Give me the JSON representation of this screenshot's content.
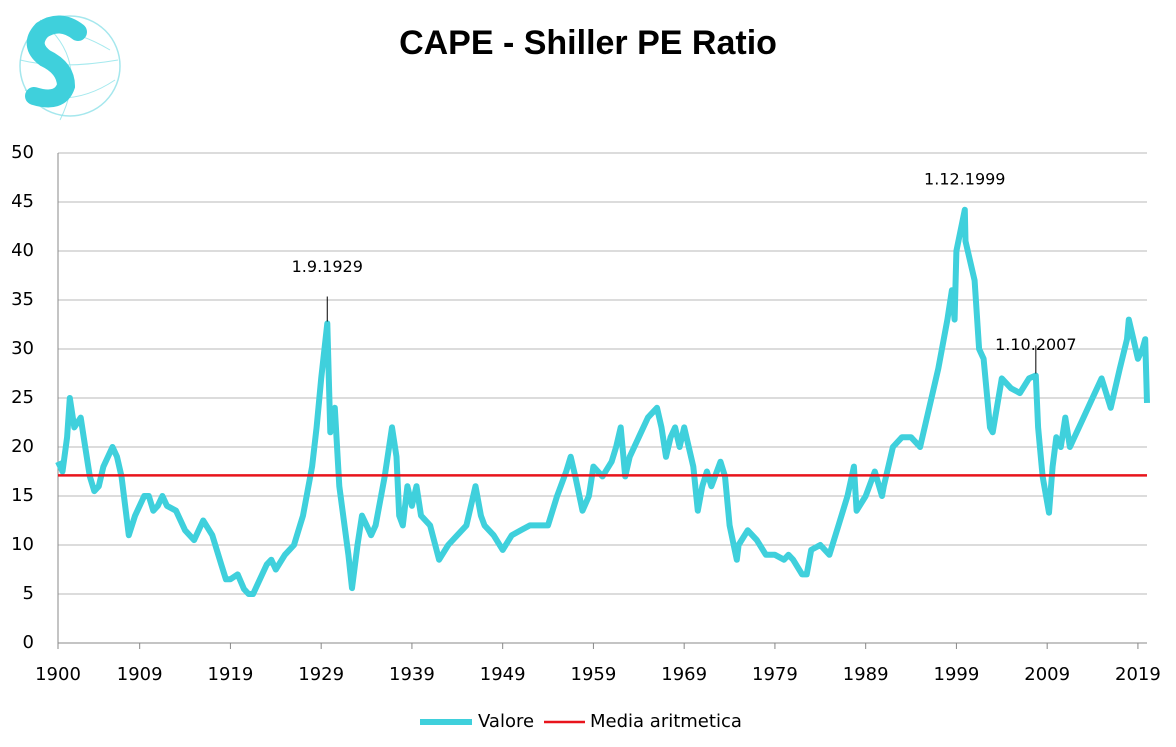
{
  "chart_data": {
    "type": "line",
    "title": "CAPE - Shiller PE Ratio",
    "x": [
      1900,
      1900.5,
      1901,
      1901.3,
      1901.8,
      1902.5,
      1903,
      1903.5,
      1904,
      1904.5,
      1905,
      1906,
      1906.5,
      1907,
      1907.8,
      1908.5,
      1909.5,
      1910,
      1910.5,
      1911,
      1911.5,
      1912,
      1913,
      1914,
      1915,
      1916,
      1917,
      1918,
      1918.5,
      1919,
      1919.8,
      1920.5,
      1921,
      1921.5,
      1922,
      1923,
      1923.5,
      1924,
      1925,
      1926,
      1926.5,
      1927,
      1928,
      1928.5,
      1929,
      1929.67,
      1930,
      1930.5,
      1931,
      1932,
      1932.4,
      1933,
      1933.5,
      1934,
      1934.5,
      1935,
      1936,
      1936.8,
      1937.3,
      1937.6,
      1938,
      1938.5,
      1939,
      1939.5,
      1940,
      1941,
      1942,
      1943,
      1944,
      1945,
      1946,
      1946.6,
      1947,
      1948,
      1949,
      1950,
      1951,
      1952,
      1953,
      1954,
      1955,
      1956,
      1956.5,
      1957,
      1957.8,
      1958.5,
      1959,
      1960,
      1961,
      1961.5,
      1962,
      1962.5,
      1963,
      1964,
      1965,
      1966,
      1966.5,
      1967,
      1967.5,
      1968,
      1968.5,
      1969,
      1970,
      1970.5,
      1971,
      1971.5,
      1972,
      1973,
      1973.5,
      1974,
      1974.8,
      1975,
      1976,
      1977,
      1978,
      1979,
      1980,
      1980.5,
      1981,
      1982,
      1982.5,
      1983,
      1984,
      1985,
      1986,
      1987,
      1987.7,
      1988,
      1989,
      1990,
      1990.8,
      1991,
      1992,
      1993,
      1994,
      1995,
      1996,
      1997,
      1998,
      1998.5,
      1998.8,
      1999,
      1999.92,
      2000,
      2001,
      2001.5,
      2002,
      2002.7,
      2003,
      2004,
      2005,
      2006,
      2007,
      2007.75,
      2008,
      2008.5,
      2009.2,
      2009.6,
      2010,
      2010.5,
      2011,
      2011.5,
      2012,
      2013,
      2014,
      2015,
      2016,
      2017,
      2017.8,
      2018,
      2018.5,
      2019,
      2019.5,
      2019.8,
      2020
    ],
    "series": [
      {
        "name": "Valore",
        "color": "#3fd0dc",
        "values": [
          18.5,
          17.5,
          21,
          25,
          22,
          23,
          20,
          17,
          15.5,
          16,
          18,
          20,
          19,
          17,
          11,
          13,
          15,
          15,
          13.5,
          14,
          15,
          14,
          13.5,
          11.5,
          10.5,
          12.5,
          11,
          8,
          6.5,
          6.5,
          7,
          5.5,
          5,
          5,
          6,
          8,
          8.5,
          7.5,
          9,
          10,
          11.5,
          13,
          18,
          22,
          27,
          32.6,
          21.5,
          24,
          16,
          9,
          5.6,
          10,
          13,
          12,
          11,
          12,
          17,
          22,
          19,
          13,
          12,
          16,
          14,
          16,
          13,
          12,
          8.5,
          10,
          11,
          12,
          16,
          13,
          12,
          11,
          9.5,
          11,
          11.5,
          12,
          12,
          12,
          15,
          17.5,
          19,
          17,
          13.5,
          15,
          18,
          17,
          18.5,
          20,
          22,
          17,
          19,
          21,
          23,
          24,
          22,
          19,
          21,
          22,
          20,
          22,
          18,
          13.5,
          16,
          17.5,
          16,
          18.5,
          17,
          12,
          8.5,
          10,
          11.5,
          10.5,
          9,
          9,
          8.5,
          9,
          8.5,
          7,
          7,
          9.5,
          10,
          9,
          12,
          15,
          18,
          13.5,
          15,
          17.5,
          15,
          16,
          20,
          21,
          21,
          20,
          24,
          28,
          33,
          36,
          33,
          40,
          44.2,
          41,
          37,
          30,
          29,
          22,
          21.5,
          27,
          26,
          25.5,
          27,
          27.3,
          22,
          17,
          13.3,
          18,
          21,
          20,
          23,
          20,
          21,
          23,
          25,
          27,
          24,
          28,
          31,
          33,
          31,
          29,
          30,
          31,
          24.5
        ]
      }
    ],
    "reference_line": {
      "name": "Media aritmetica",
      "value": 17.1,
      "color": "#e8141c"
    },
    "annotations": [
      {
        "text": "1.9.1929",
        "x": 1929.67,
        "y": 32.6
      },
      {
        "text": "1.12.1999",
        "x": 1999.92,
        "y": 44.2
      },
      {
        "text": "1.10.2007",
        "x": 2007.75,
        "y": 27.3
      }
    ],
    "xlim": [
      1900,
      2020
    ],
    "xticks": [
      1900,
      1909,
      1919,
      1929,
      1939,
      1949,
      1959,
      1969,
      1979,
      1989,
      1999,
      2009,
      2019
    ],
    "ylim": [
      0,
      50
    ],
    "yticks": [
      0,
      5,
      10,
      15,
      20,
      25,
      30,
      35,
      40,
      45,
      50
    ],
    "grid": true
  }
}
